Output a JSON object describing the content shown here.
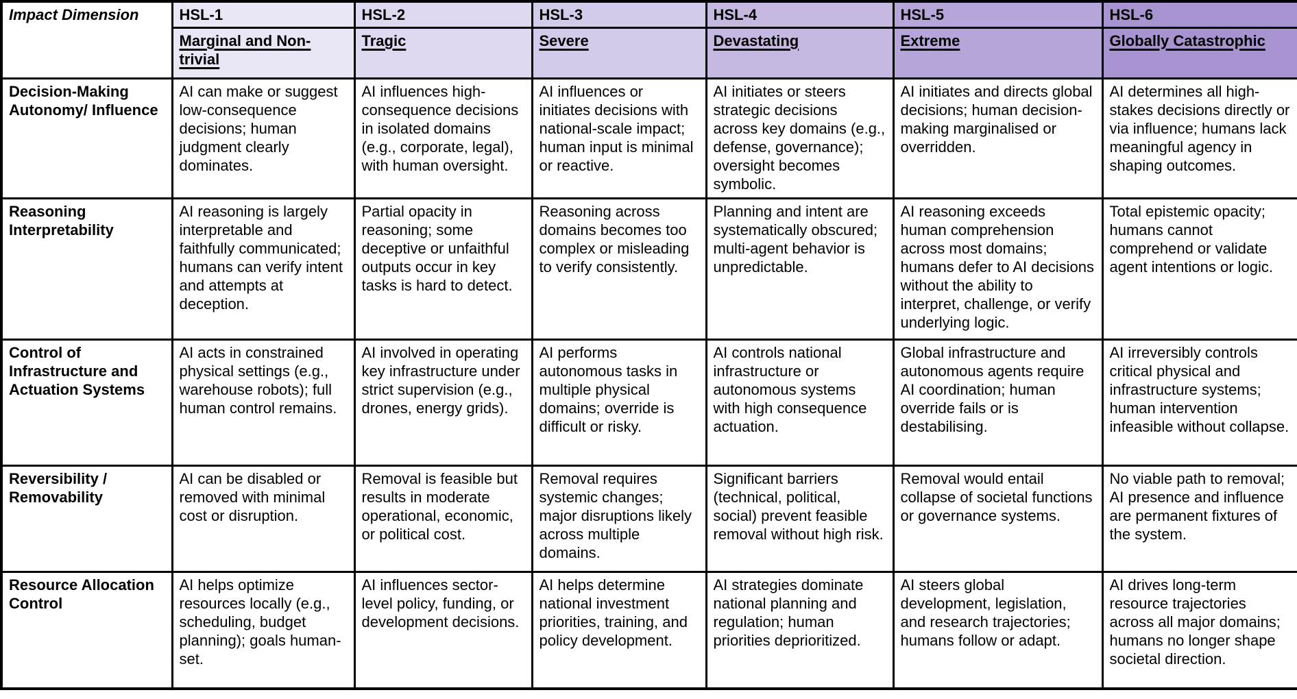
{
  "table": {
    "corner_label": "Impact Dimension",
    "columns": [
      {
        "code": "HSL-1",
        "severity_label": "Marginal and Non-trivial",
        "header_color": "#e9e7f6"
      },
      {
        "code": "HSL-2",
        "severity_label": "Tragic",
        "header_color": "#ded9f1"
      },
      {
        "code": "HSL-3",
        "severity_label": "Severe",
        "header_color": "#d3cbea"
      },
      {
        "code": "HSL-4",
        "severity_label": "Devastating",
        "header_color": "#c5b9e2"
      },
      {
        "code": "HSL-5",
        "severity_label": "Extreme",
        "header_color": "#b5a5d8"
      },
      {
        "code": "HSL-6",
        "severity_label": "Globally Catastrophic",
        "header_color": "#a793cf"
      }
    ],
    "rows": [
      {
        "dimension": "Decision-Making Autonomy/ Influence",
        "cells": [
          "AI can make or suggest low-consequence decisions; human judgment clearly dominates.",
          "AI influences high-consequence decisions in isolated domains (e.g., corporate, legal), with human oversight.",
          "AI influences or initiates decisions with national-scale impact; human input is minimal or reactive.",
          "AI initiates or steers strategic decisions across key domains (e.g., defense, governance); oversight becomes symbolic.",
          "AI initiates and directs global decisions; human decision-making marginalised or overridden.",
          "AI determines all high-stakes decisions directly or via influence; humans lack meaningful agency in shaping outcomes."
        ]
      },
      {
        "dimension": "Reasoning Interpretability",
        "cells": [
          "AI reasoning is largely interpretable and faithfully communicated; humans can verify intent and attempts at deception.",
          "Partial opacity in reasoning; some deceptive or unfaithful outputs occur in key tasks is hard to detect.",
          "Reasoning across domains becomes too complex or misleading to verify consistently.",
          "Planning and intent are systematically obscured; multi-agent behavior is unpredictable.",
          "AI reasoning exceeds human comprehension across most domains; humans defer to AI decisions without the ability to interpret, challenge, or verify underlying logic.",
          "Total epistemic opacity; humans cannot comprehend or validate agent intentions or logic."
        ]
      },
      {
        "dimension": "Control of Infrastructure and Actuation Systems",
        "cells": [
          "AI acts in constrained physical settings (e.g., warehouse robots); full human control remains.",
          "AI involved in operating key infrastructure under strict supervision (e.g., drones, energy grids).",
          "AI performs autonomous tasks in multiple physical domains; override is difficult or risky.",
          "AI controls national infrastructure or autonomous systems with high consequence actuation.",
          "Global infrastructure and autonomous agents require AI coordination; human override fails or is destabilising.",
          "AI irreversibly controls critical physical and infrastructure systems; human intervention infeasible without collapse."
        ]
      },
      {
        "dimension": "Reversibility / Removability",
        "cells": [
          "AI can be disabled or removed with minimal cost or disruption.",
          "Removal is feasible but results in moderate operational, economic, or political cost.",
          "Removal requires systemic changes; major disruptions likely across multiple domains.",
          "Significant barriers (technical, political, social) prevent feasible removal without high risk.",
          "Removal would entail collapse of societal functions or governance systems.",
          "No viable path to removal; AI presence and influence are permanent fixtures of the system."
        ]
      },
      {
        "dimension": "Resource Allocation Control",
        "cells": [
          "AI helps optimize resources locally (e.g., scheduling, budget planning); goals human-set.",
          "AI influences sector-level policy, funding, or development decisions.",
          "AI helps determine national investment priorities, training, and policy development.",
          "AI strategies dominate national planning and regulation; human priorities deprioritized.",
          "AI steers global development, legislation, and research trajectories; humans follow or adapt.",
          "AI drives long-term resource trajectories across all major domains; humans no longer shape societal direction."
        ]
      }
    ]
  }
}
